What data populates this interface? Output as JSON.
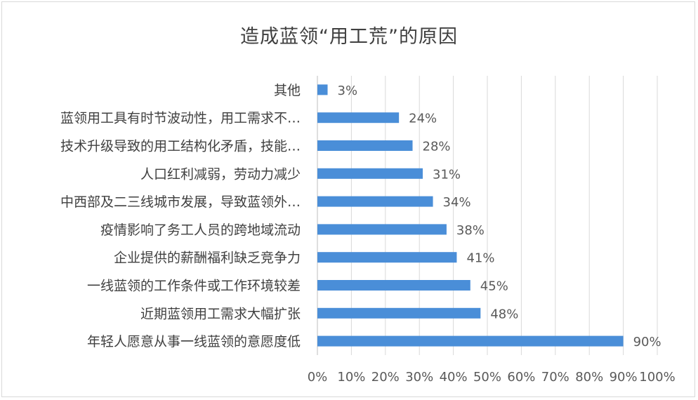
{
  "chart_data": {
    "type": "bar",
    "orientation": "horizontal",
    "title": "造成蓝领“用工荒”的原因",
    "categories": [
      "其他",
      "蓝领用工具有时节波动性，用工需求不…",
      "技术升级导致的用工结构化矛盾，技能…",
      "人口红利减弱，劳动力减少",
      "中西部及二三线城市发展，导致蓝领外…",
      "疫情影响了务工人员的跨地域流动",
      "企业提供的薪酬福利缺乏竞争力",
      "一线蓝领的工作条件或工作环境较差",
      "近期蓝领用工需求大幅扩张",
      "年轻人愿意从事一线蓝领的意愿度低"
    ],
    "values": [
      3,
      24,
      28,
      31,
      34,
      38,
      41,
      45,
      48,
      90
    ],
    "value_labels": [
      "3%",
      "24%",
      "28%",
      "31%",
      "34%",
      "38%",
      "41%",
      "45%",
      "48%",
      "90%"
    ],
    "xlim": [
      0,
      100
    ],
    "x_ticks": [
      "0%",
      "10%",
      "20%",
      "30%",
      "40%",
      "50%",
      "60%",
      "70%",
      "80%",
      "90%",
      "100%"
    ],
    "grid": true,
    "bar_color": "#4a8ed8",
    "xlabel": "",
    "ylabel": ""
  }
}
